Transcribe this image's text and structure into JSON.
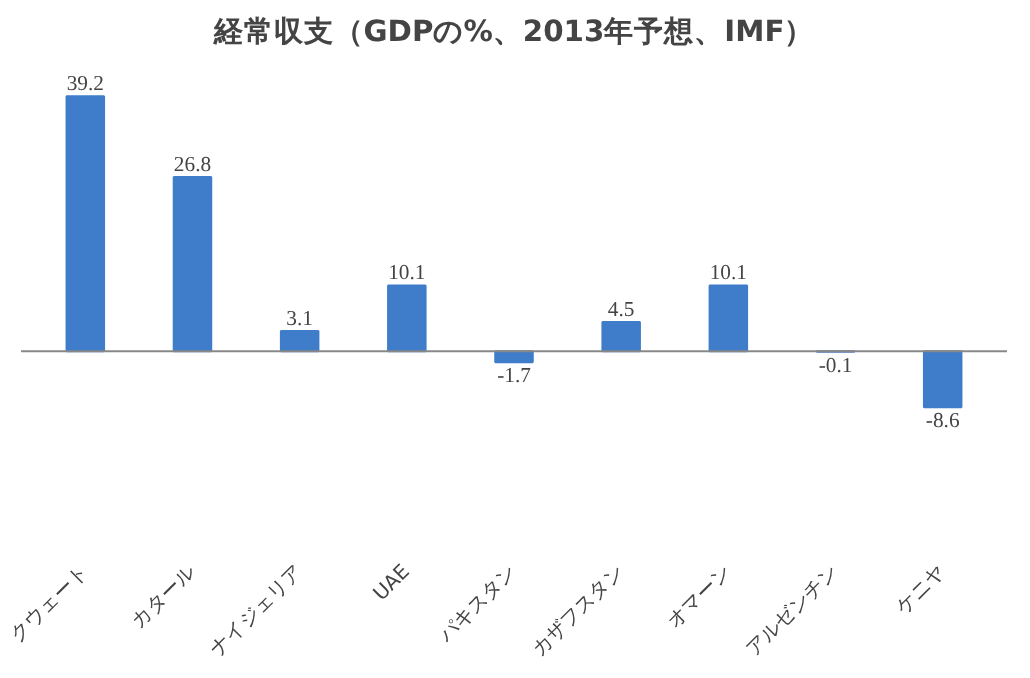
{
  "chart_data": {
    "type": "bar",
    "title": "経常収支（GDPの%、2013年予想、IMF）",
    "categories": [
      "クウェート",
      "カタール",
      "ナイジェリア",
      "UAE",
      "パキスタン",
      "カザフスタン",
      "オマーン",
      "アルゼンチン",
      "ケニヤ"
    ],
    "values": [
      39.2,
      26.8,
      3.1,
      10.1,
      -1.7,
      4.5,
      10.1,
      -0.1,
      -8.6
    ],
    "color": "#3f7cc9",
    "data_labels": true
  }
}
